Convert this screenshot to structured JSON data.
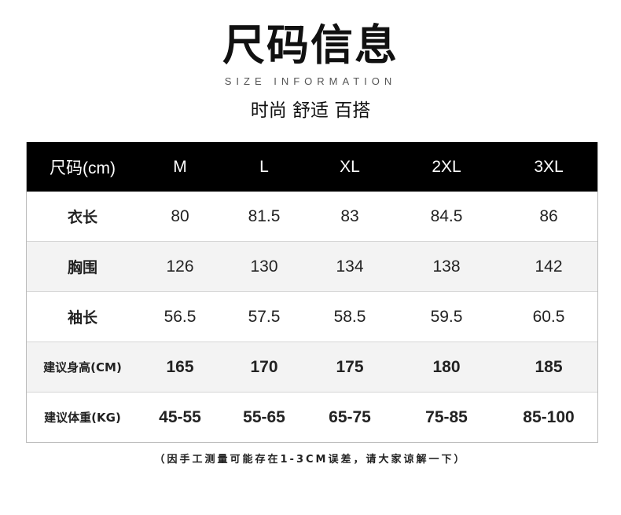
{
  "header": {
    "title": "尺码信息",
    "subtitle": "SIZE INFORMATION",
    "slogan": "时尚 舒适 百搭"
  },
  "table": {
    "columns": [
      "尺码(cm)",
      "M",
      "L",
      "XL",
      "2XL",
      "3XL"
    ],
    "rows": [
      {
        "label": "衣长",
        "values": [
          "80",
          "81.5",
          "83",
          "84.5",
          "86"
        ]
      },
      {
        "label": "胸围",
        "values": [
          "126",
          "130",
          "134",
          "138",
          "142"
        ]
      },
      {
        "label": "袖长",
        "values": [
          "56.5",
          "57.5",
          "58.5",
          "59.5",
          "60.5"
        ]
      },
      {
        "label": "建议身高(CM)",
        "values": [
          "165",
          "170",
          "175",
          "180",
          "185"
        ]
      },
      {
        "label": "建议体重(KG)",
        "values": [
          "45-55",
          "55-65",
          "65-75",
          "75-85",
          "85-100"
        ]
      }
    ]
  },
  "footer": {
    "note": "（因手工测量可能存在1-3CM误差，请大家谅解一下）"
  }
}
